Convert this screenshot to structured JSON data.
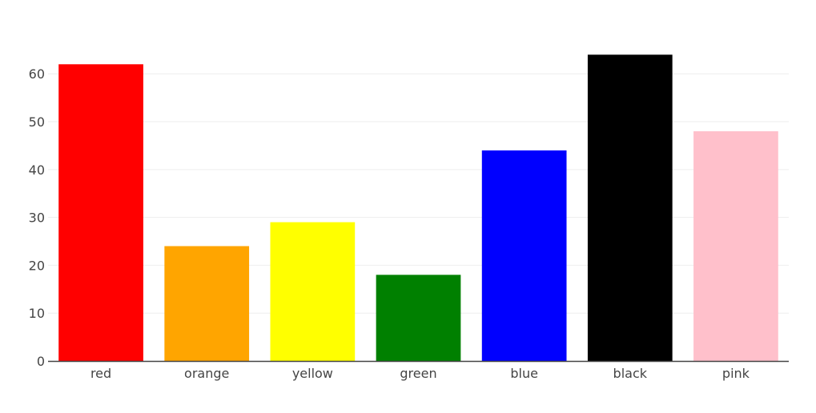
{
  "chart_data": {
    "type": "bar",
    "title": "",
    "xlabel": "",
    "ylabel": "",
    "categories": [
      "red",
      "orange",
      "yellow",
      "green",
      "blue",
      "black",
      "pink"
    ],
    "values": [
      62,
      24,
      29,
      18,
      44,
      64,
      48
    ],
    "bar_colors": [
      "#ff0000",
      "#ffa500",
      "#ffff00",
      "#008000",
      "#0000ff",
      "#000000",
      "#ffc0cb"
    ],
    "ylim": [
      0,
      67.4
    ],
    "yticks": [
      0,
      10,
      20,
      30,
      40,
      50,
      60
    ],
    "ytick_labels": [
      "0",
      "10",
      "20",
      "30",
      "40",
      "50",
      "60"
    ],
    "grid": true,
    "grid_color": "#eeeeee",
    "axis_line_color": "#444444",
    "legend": "none"
  }
}
